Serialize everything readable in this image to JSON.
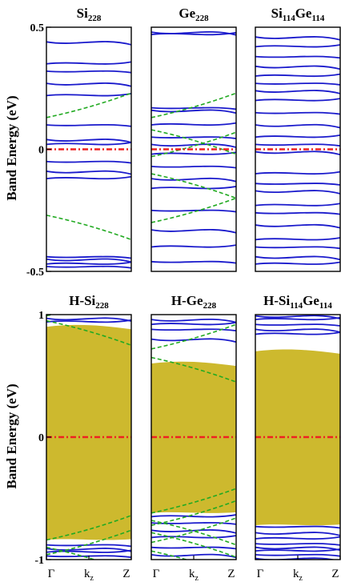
{
  "colors": {
    "band": "#1a1acc",
    "dashed": "#22aa22",
    "fermi": "#ee2222",
    "gap": "#cdb92e",
    "frame": "#000000"
  },
  "ylabel": "Band Energy (eV)",
  "chart_data": [
    {
      "type": "line",
      "title": "Si",
      "title_sub": "228",
      "ylim": [
        -0.5,
        0.5
      ],
      "yticks": [
        "0.5",
        "0",
        "-0.5"
      ],
      "gap": null,
      "solid_levels": [
        0.44,
        0.35,
        0.32,
        0.27,
        0.22,
        0.1,
        0.04,
        0.02,
        -0.05,
        -0.09,
        -0.12,
        -0.44,
        -0.45,
        -0.47,
        -0.48
      ],
      "dashed_levels": [
        0.13,
        -0.27
      ]
    },
    {
      "type": "line",
      "title": "Ge",
      "title_sub": "228",
      "ylim": [
        -0.5,
        0.5
      ],
      "yticks": [],
      "gap": null,
      "solid_levels": [
        0.48,
        0.47,
        0.17,
        0.16,
        0.1,
        0.05,
        0.02,
        -0.02,
        -0.07,
        -0.12,
        -0.16,
        -0.25,
        -0.33,
        -0.4,
        -0.46
      ],
      "dashed_levels": [
        0.13,
        0.08,
        -0.03,
        -0.1,
        -0.3
      ]
    },
    {
      "type": "line",
      "title": "Si",
      "title_sub": "114",
      "title2": "Ge",
      "title2_sub": "114",
      "ylim": [
        -0.5,
        0.5
      ],
      "yticks": [],
      "gap": null,
      "solid_levels": [
        0.46,
        0.42,
        0.38,
        0.34,
        0.3,
        0.27,
        0.24,
        0.2,
        0.15,
        0.1,
        0.05,
        0.02,
        -0.01,
        -0.1,
        -0.14,
        -0.17,
        -0.23,
        -0.26,
        -0.31,
        -0.37,
        -0.4,
        -0.44,
        -0.47
      ],
      "dashed_levels": []
    },
    {
      "type": "area",
      "title": "H-Si",
      "title_sub": "228",
      "ylim": [
        -1,
        1
      ],
      "yticks": [
        "1",
        "0",
        "-1"
      ],
      "gap": [
        -0.84,
        0.92
      ],
      "solid_levels": [
        0.97,
        0.94,
        -0.88,
        -0.91,
        -0.94,
        -0.97
      ],
      "dashed_levels": [
        0.99,
        0.95,
        -0.84,
        -0.9,
        -0.96
      ],
      "xticks": [
        "Γ",
        "k",
        "Z"
      ],
      "xtick_mid_sub": "z"
    },
    {
      "type": "area",
      "title": "H-Ge",
      "title_sub": "228",
      "ylim": [
        -1,
        1
      ],
      "yticks": [],
      "gap": [
        -0.62,
        0.62
      ],
      "solid_levels": [
        0.96,
        0.92,
        0.88,
        0.8,
        -0.65,
        -0.7,
        -0.76,
        -0.82,
        -0.9,
        -0.96
      ],
      "dashed_levels": [
        0.72,
        0.65,
        -0.62,
        -0.68,
        -0.72,
        -0.78,
        -0.86,
        -0.93
      ],
      "xticks": [
        "Γ",
        "k",
        "Z"
      ],
      "xtick_mid_sub": "z"
    },
    {
      "type": "area",
      "title": "H-Si",
      "title_sub": "114",
      "title2": "Ge",
      "title2_sub": "114",
      "ylim": [
        -1,
        1
      ],
      "yticks": [],
      "gap": [
        -0.72,
        0.72
      ],
      "solid_levels": [
        0.99,
        0.96,
        0.92,
        0.88,
        0.84,
        -0.73,
        -0.78,
        -0.83,
        -0.87,
        -0.9,
        -0.93,
        -0.96,
        -0.99
      ],
      "dashed_levels": [],
      "xticks": [
        "Γ",
        "k",
        "Z"
      ],
      "xtick_mid_sub": "z"
    }
  ]
}
